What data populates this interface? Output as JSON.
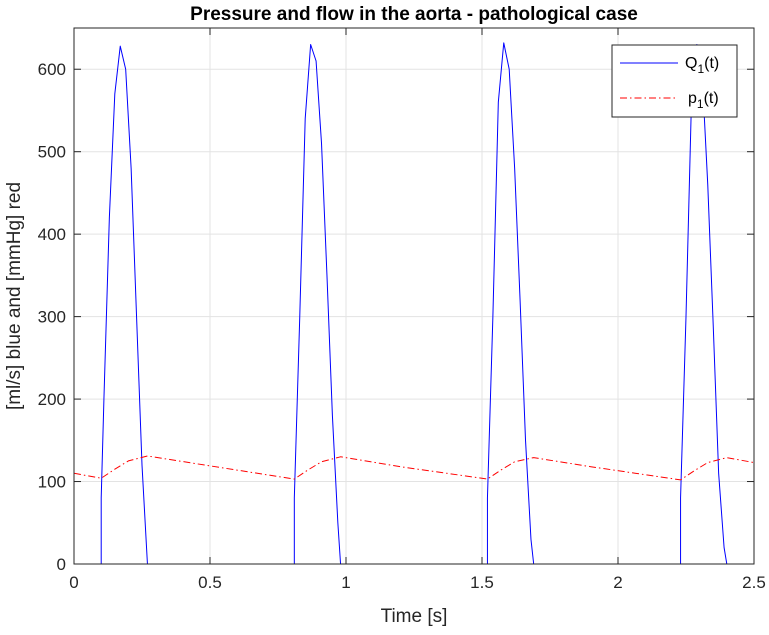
{
  "chart_data": {
    "type": "line",
    "title": "Pressure and flow in the aorta - pathological case",
    "xlabel": "Time [s]",
    "ylabel": "[ml/s] blue and [mmHg] red",
    "xlim": [
      0,
      2.5
    ],
    "ylim": [
      0,
      650
    ],
    "xticks": [
      0,
      0.5,
      1,
      1.5,
      2,
      2.5
    ],
    "xtick_labels": [
      "0",
      "0.5",
      "1",
      "1.5",
      "2",
      "2.5"
    ],
    "yticks": [
      0,
      100,
      200,
      300,
      400,
      500,
      600
    ],
    "ytick_labels": [
      "0",
      "100",
      "200",
      "300",
      "400",
      "500",
      "600"
    ],
    "grid": true,
    "legend_position": "top-right",
    "series": [
      {
        "name": "Q_1(t)",
        "color": "#0000ff",
        "line_style": "solid",
        "x": [
          0,
          0.1,
          0.1,
          0.11,
          0.13,
          0.15,
          0.17,
          0.19,
          0.21,
          0.23,
          0.25,
          0.27,
          0.27,
          0.81,
          0.81,
          0.83,
          0.85,
          0.87,
          0.89,
          0.91,
          0.93,
          0.95,
          0.97,
          0.98,
          0.98,
          1.52,
          1.52,
          1.54,
          1.56,
          1.58,
          1.6,
          1.62,
          1.64,
          1.66,
          1.68,
          1.69,
          1.69,
          2.23,
          2.23,
          2.25,
          2.27,
          2.29,
          2.31,
          2.33,
          2.35,
          2.37,
          2.39,
          2.4,
          2.4,
          2.5
        ],
        "y": [
          0,
          0,
          80,
          200,
          420,
          570,
          628,
          600,
          480,
          300,
          120,
          0,
          0,
          0,
          80,
          300,
          540,
          630,
          610,
          510,
          350,
          180,
          50,
          0,
          0,
          0,
          80,
          300,
          560,
          632,
          600,
          480,
          320,
          150,
          30,
          0,
          0,
          0,
          80,
          300,
          560,
          630,
          590,
          460,
          290,
          110,
          20,
          0,
          0,
          0
        ]
      },
      {
        "name": "p_1(t)",
        "color": "#ff0000",
        "line_style": "dashdot",
        "x": [
          0,
          0.1,
          0.15,
          0.2,
          0.27,
          0.5,
          0.81,
          0.86,
          0.91,
          0.98,
          1.2,
          1.52,
          1.57,
          1.62,
          1.69,
          1.9,
          2.23,
          2.28,
          2.33,
          2.4,
          2.5
        ],
        "y": [
          110,
          104,
          115,
          125,
          131,
          119,
          103,
          114,
          124,
          130,
          118,
          103,
          114,
          124,
          129,
          118,
          102,
          113,
          123,
          129,
          123
        ]
      }
    ]
  }
}
